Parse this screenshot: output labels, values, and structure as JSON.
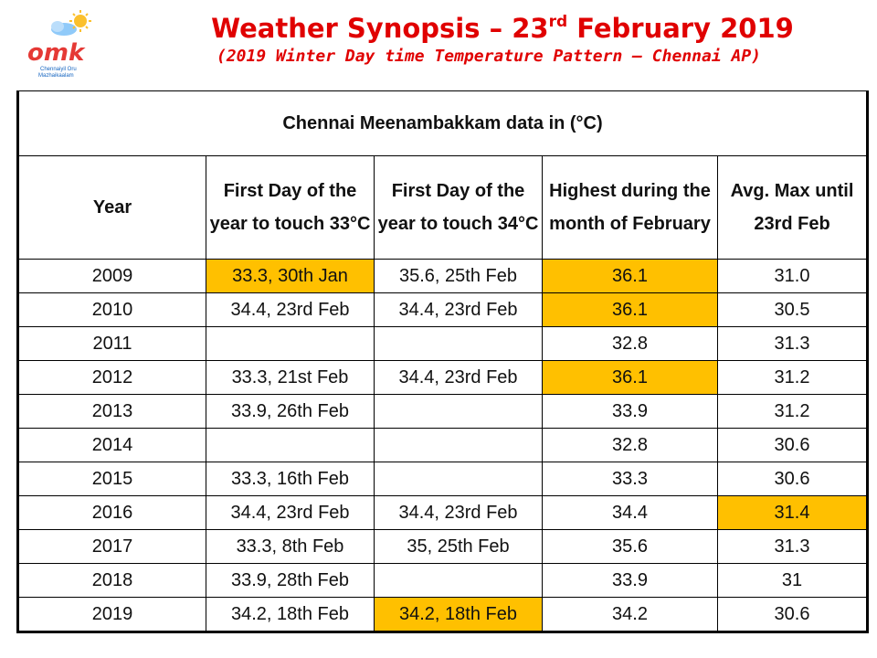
{
  "logo": {
    "text": "omk",
    "subtext_line1": "Chennaiyil Oru",
    "subtext_line2": "Mazhaikaalam",
    "colors": {
      "blue": "#1565c0",
      "red": "#e53935",
      "yellow": "#fbc02d"
    },
    "icons": [
      "sun-icon",
      "cloud-icon"
    ]
  },
  "title": {
    "prefix": "Weather Synopsis – 23",
    "suffix_sup": "rd",
    "suffix": " February 2019"
  },
  "subtitle": "(2019 Winter Day time Temperature Pattern – Chennai AP)",
  "table": {
    "caption": "Chennai Meenambakkam data in (°C)",
    "headers": {
      "year": "Year",
      "first33_line1": "First Day of the",
      "first33_line2": "year to touch 33°C",
      "first34_line1": "First Day of the",
      "first34_line2": "year to touch 34°C",
      "highest_line1": "Highest during the",
      "highest_line2": "month of February",
      "avg_line1": "Avg. Max until",
      "avg_line2": "23rd Feb"
    },
    "rows": [
      {
        "year": "2009",
        "first33": "33.3, 30th Jan",
        "first34": "35.6, 25th Feb",
        "highest": "36.1",
        "avg": "31.0"
      },
      {
        "year": "2010",
        "first33": "34.4, 23rd Feb",
        "first34": "34.4, 23rd Feb",
        "highest": "36.1",
        "avg": "30.5"
      },
      {
        "year": "2011",
        "first33": "",
        "first34": "",
        "highest": "32.8",
        "avg": "31.3"
      },
      {
        "year": "2012",
        "first33": "33.3, 21st Feb",
        "first34": "34.4, 23rd Feb",
        "highest": "36.1",
        "avg": "31.2"
      },
      {
        "year": "2013",
        "first33": "33.9, 26th Feb",
        "first34": "",
        "highest": "33.9",
        "avg": "31.2"
      },
      {
        "year": "2014",
        "first33": "",
        "first34": "",
        "highest": "32.8",
        "avg": "30.6"
      },
      {
        "year": "2015",
        "first33": "33.3, 16th Feb",
        "first34": "",
        "highest": "33.3",
        "avg": "30.6"
      },
      {
        "year": "2016",
        "first33": "34.4, 23rd Feb",
        "first34": "34.4, 23rd Feb",
        "highest": "34.4",
        "avg": "31.4"
      },
      {
        "year": "2017",
        "first33": "33.3, 8th Feb",
        "first34": "35, 25th Feb",
        "highest": "35.6",
        "avg": "31.3"
      },
      {
        "year": "2018",
        "first33": "33.9, 28th Feb",
        "first34": "",
        "highest": "33.9",
        "avg": "31"
      },
      {
        "year": "2019",
        "first33": "34.2, 18th Feb",
        "first34": "34.2, 18th Feb",
        "highest": "34.2",
        "avg": "30.6"
      }
    ],
    "highlight_color": "#ffc000"
  }
}
